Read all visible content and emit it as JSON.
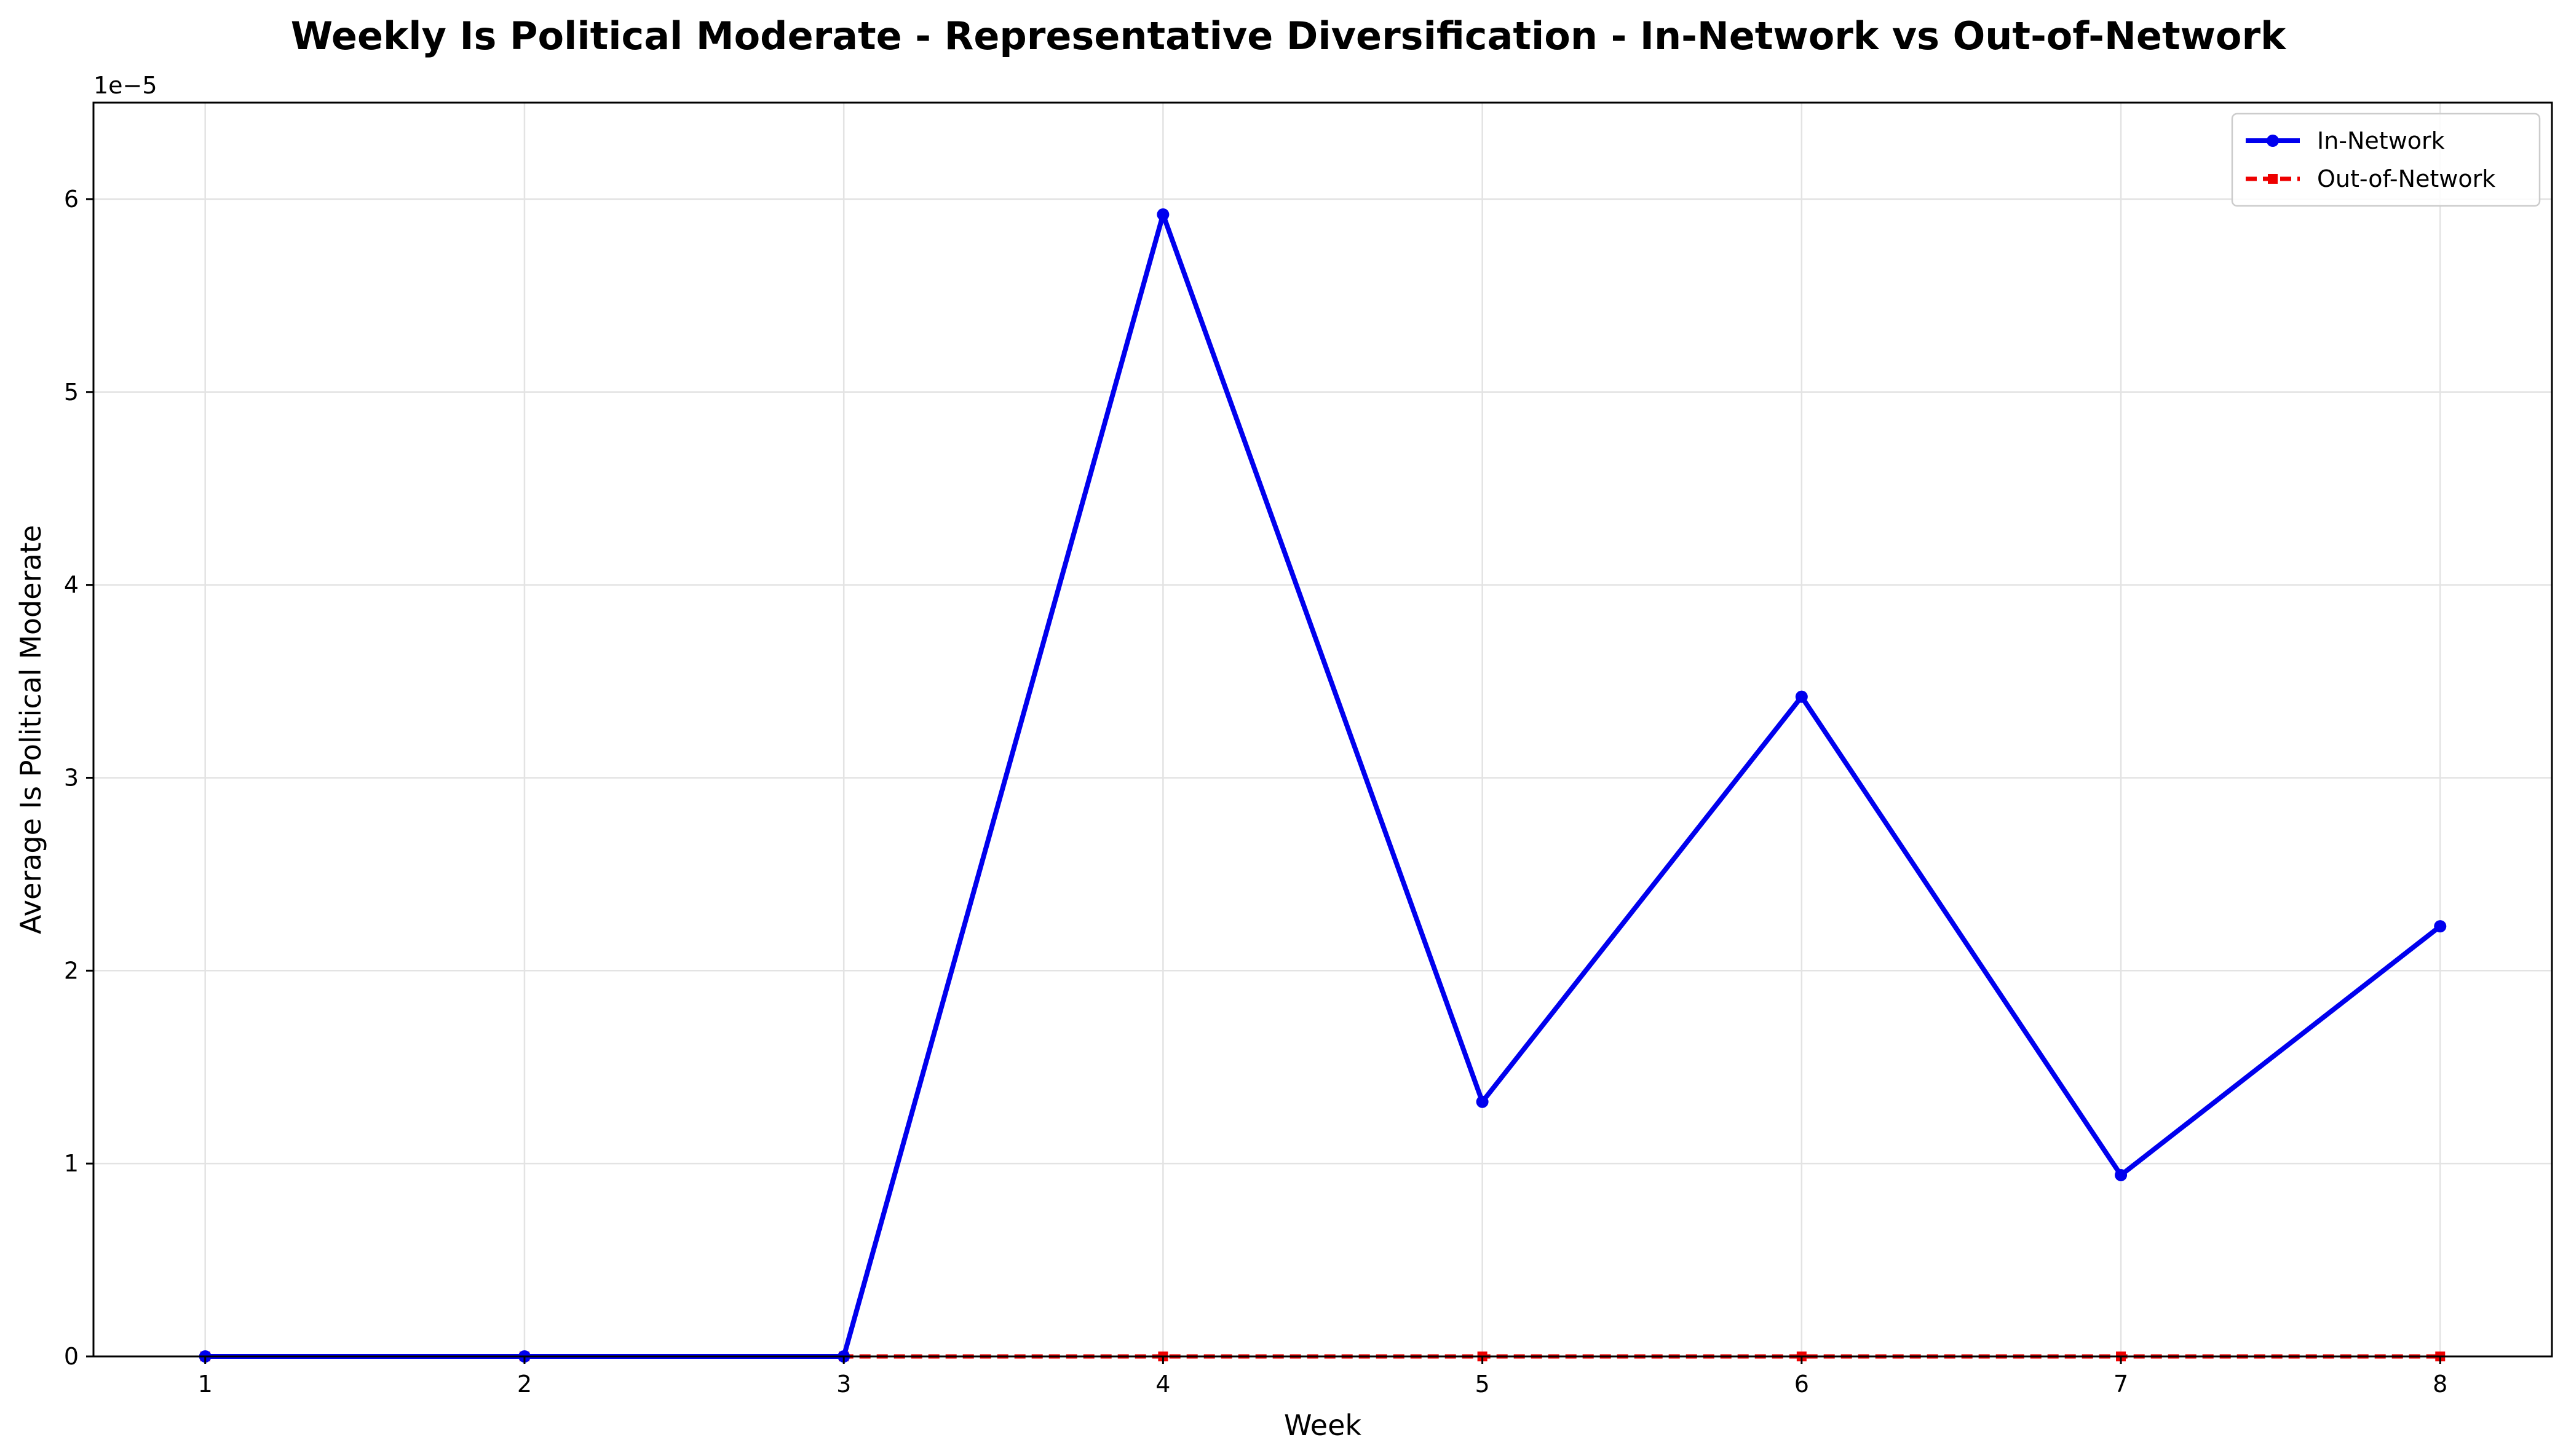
{
  "chart_data": {
    "type": "line",
    "title": "Weekly Is Political Moderate - Representative Diversification - In-Network vs Out-of-Network",
    "xlabel": "Week",
    "ylabel": "Average Is Political Moderate",
    "y_offset_label": "1e−5",
    "x": [
      1,
      2,
      3,
      4,
      5,
      6,
      7,
      8
    ],
    "x_tick_labels": [
      "1",
      "2",
      "3",
      "4",
      "5",
      "6",
      "7",
      "8"
    ],
    "y_tick_values": [
      0,
      1,
      2,
      3,
      4,
      5,
      6
    ],
    "y_tick_labels": [
      "0",
      "1",
      "2",
      "3",
      "4",
      "5",
      "6"
    ],
    "xlim": [
      0.65,
      8.35
    ],
    "ylim": [
      0,
      6.5
    ],
    "y_scale_note": "values in units of 1e-5",
    "grid": true,
    "legend_position": "top-right",
    "series": [
      {
        "name": "In-Network",
        "color": "#0000ee",
        "line_style": "solid",
        "marker": "circle",
        "values": [
          0,
          0,
          0,
          5.92,
          1.32,
          3.42,
          0.94,
          2.23
        ]
      },
      {
        "name": "Out-of-Network",
        "color": "#ee0000",
        "line_style": "dashed",
        "marker": "square",
        "values": [
          0,
          0,
          0,
          0,
          0,
          0,
          0,
          0
        ]
      }
    ]
  }
}
